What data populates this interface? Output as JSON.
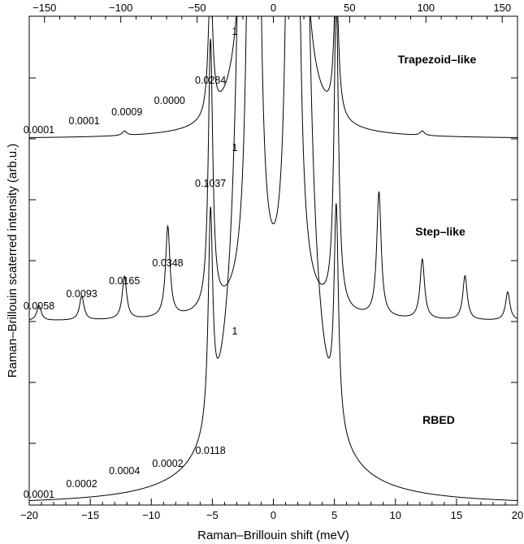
{
  "chart_data": {
    "type": "line",
    "xlabel": "Raman–Brillouin shift (meV)",
    "ylabel": "Raman–Brillouin scaterred intensity (arb.u.)",
    "xlim": [
      -20,
      20
    ],
    "top_xlim": [
      -160,
      160
    ],
    "x_ticks": [
      "−20",
      "−15",
      "−10",
      "−5",
      "0",
      "5",
      "10",
      "15",
      "20"
    ],
    "top_x_ticks": [
      "−150",
      "−100",
      "−50",
      "0",
      "50",
      "100",
      "150"
    ],
    "grid": false,
    "legend": "none",
    "series": [
      {
        "label": "Trapezoid–like",
        "central_label": "1",
        "peaks": [
          {
            "x": -1.6,
            "h": 1.0
          },
          {
            "x": 1.6,
            "h": 1.0
          },
          {
            "x": -5.15,
            "h": 0.0284
          },
          {
            "x": 5.15,
            "h": 0.029
          },
          {
            "x": -12.2,
            "h": 0.0009
          },
          {
            "x": 12.2,
            "h": 0.0009
          }
        ],
        "annotations": [
          {
            "text": "0.0001",
            "x": -19.2
          },
          {
            "text": "0.0001",
            "x": -15.5
          },
          {
            "text": "0.0009",
            "x": -12.0
          },
          {
            "text": "0.0000",
            "x": -8.5
          },
          {
            "text": "0.0284",
            "x": -5.15
          }
        ]
      },
      {
        "label": "Step–like",
        "central_label": "1",
        "peaks": [
          {
            "x": -1.6,
            "h": 1.0
          },
          {
            "x": 1.6,
            "h": 1.0
          },
          {
            "x": -5.15,
            "h": 0.1037
          },
          {
            "x": 5.15,
            "h": 0.12
          },
          {
            "x": -8.65,
            "h": 0.0348
          },
          {
            "x": 8.65,
            "h": 0.048
          },
          {
            "x": -12.2,
            "h": 0.0165
          },
          {
            "x": 12.2,
            "h": 0.023
          },
          {
            "x": -15.7,
            "h": 0.0093
          },
          {
            "x": 15.7,
            "h": 0.017
          },
          {
            "x": -19.2,
            "h": 0.0058
          },
          {
            "x": 19.2,
            "h": 0.011
          }
        ],
        "annotations": [
          {
            "text": "0.0058",
            "x": -19.2
          },
          {
            "text": "0.0093",
            "x": -15.7
          },
          {
            "text": "0.0165",
            "x": -12.2
          },
          {
            "text": "0.0348",
            "x": -8.65
          },
          {
            "text": "0.1037",
            "x": -5.15
          }
        ]
      },
      {
        "label": "RBED",
        "central_label": "1",
        "peaks": [
          {
            "x": -1.6,
            "h": 1.0
          },
          {
            "x": 1.6,
            "h": 1.0
          },
          {
            "x": -5.15,
            "h": 0.0118
          },
          {
            "x": 5.15,
            "h": 0.012
          }
        ],
        "annotations": [
          {
            "text": "0.0001",
            "x": -19.2
          },
          {
            "text": "0.0002",
            "x": -15.7
          },
          {
            "text": "0.0004",
            "x": -12.2
          },
          {
            "text": "0.0002",
            "x": -8.65
          },
          {
            "text": "0.0118",
            "x": -5.15
          }
        ]
      }
    ]
  }
}
